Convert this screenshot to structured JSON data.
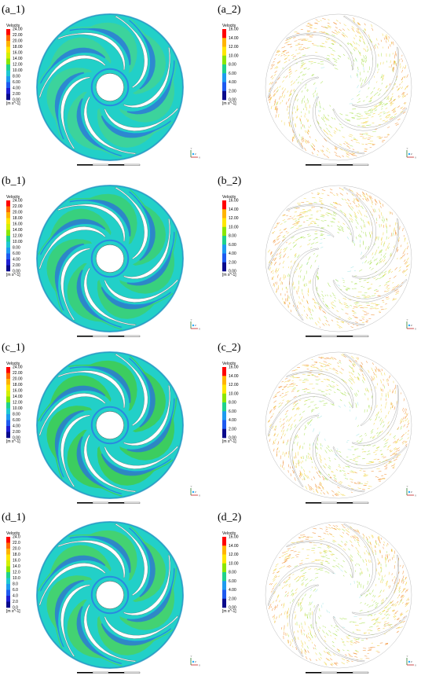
{
  "panels": [
    {
      "id": "a_1",
      "label": "(a_1)",
      "kind": "contour",
      "legend": {
        "title": "Velocity",
        "ticks": [
          "24.00",
          "22.00",
          "20.00",
          "18.00",
          "16.00",
          "14.00",
          "12.00",
          "10.00",
          "8.00",
          "6.00",
          "4.00",
          "2.00",
          "0.00"
        ],
        "unit": "[m s^-1]"
      },
      "fill": "#3ed39a",
      "blade_count": 7
    },
    {
      "id": "a_2",
      "label": "(a_2)",
      "kind": "vector",
      "legend": {
        "title": "Velocity",
        "ticks": [
          "16.00",
          "14.00",
          "12.00",
          "10.00",
          "8.00",
          "6.00",
          "4.00",
          "2.00",
          "0.00"
        ],
        "unit": "[m s^-1]"
      },
      "blade_count": 7
    },
    {
      "id": "b_1",
      "label": "(b_1)",
      "kind": "contour",
      "legend": {
        "title": "Velocity",
        "ticks": [
          "24.00",
          "22.00",
          "20.00",
          "18.00",
          "16.00",
          "14.00",
          "12.00",
          "10.00",
          "8.00",
          "6.00",
          "4.00",
          "2.00",
          "0.00"
        ],
        "unit": "[m s^-1]"
      },
      "fill": "#3ad07a",
      "blade_count": 7
    },
    {
      "id": "b_2",
      "label": "(b_2)",
      "kind": "vector",
      "legend": {
        "title": "Velocity",
        "ticks": [
          "16.00",
          "14.00",
          "12.00",
          "10.00",
          "8.00",
          "6.00",
          "4.00",
          "2.00",
          "0.00"
        ],
        "unit": "[m s^-1]"
      },
      "blade_count": 7
    },
    {
      "id": "c_1",
      "label": "(c_1)",
      "kind": "contour",
      "legend": {
        "title": "Velocity",
        "ticks": [
          "24.00",
          "22.00",
          "20.00",
          "18.00",
          "16.00",
          "14.00",
          "12.00",
          "10.00",
          "8.00",
          "6.00",
          "4.00",
          "2.00",
          "0.00"
        ],
        "unit": "[m s^-1]"
      },
      "fill": "#3ecc5a",
      "blade_count": 7
    },
    {
      "id": "c_2",
      "label": "(c_2)",
      "kind": "vector",
      "legend": {
        "title": "Velocity",
        "ticks": [
          "16.00",
          "14.00",
          "12.00",
          "10.00",
          "8.00",
          "6.00",
          "4.00",
          "2.00",
          "0.00"
        ],
        "unit": "[m s^-1]"
      },
      "blade_count": 7
    },
    {
      "id": "d_1",
      "label": "(d_1)",
      "kind": "contour",
      "legend": {
        "title": "Velocity",
        "ticks": [
          "24.0",
          "22.0",
          "20.0",
          "18.0",
          "16.0",
          "14.0",
          "12.0",
          "10.0",
          "8.0",
          "6.0",
          "4.0",
          "2.0",
          "0.0"
        ],
        "unit": "[m s^-1]"
      },
      "fill": "#46d26e",
      "blade_count": 7
    },
    {
      "id": "d_2",
      "label": "(d_2)",
      "kind": "vector",
      "legend": {
        "title": "Velocity",
        "ticks": [
          "16.00",
          "14.00",
          "12.00",
          "10.00",
          "8.00",
          "6.00",
          "4.00",
          "2.00",
          "0.00"
        ],
        "unit": "[m s^-1]"
      },
      "blade_count": 7
    }
  ],
  "colors": {
    "contour_low": "#2a6fe0",
    "contour_mid": "#22d0c8",
    "contour_high": "#49d15a",
    "vector_low": "#9fe6e6",
    "vector_mid": "#a6e04a",
    "vector_high": "#f0d23a",
    "vector_peak": "#f08a2a"
  },
  "colormap": [
    "#ff0000",
    "#ff6a00",
    "#ffb400",
    "#ffe600",
    "#d4f000",
    "#8ae600",
    "#38dc3a",
    "#1ed28c",
    "#1ec8d2",
    "#1e9bf0",
    "#1e5af0",
    "#1e1ed2",
    "#0a0a8c"
  ],
  "axis_triad": {
    "x": "X",
    "y": "Y",
    "z": "Z"
  }
}
